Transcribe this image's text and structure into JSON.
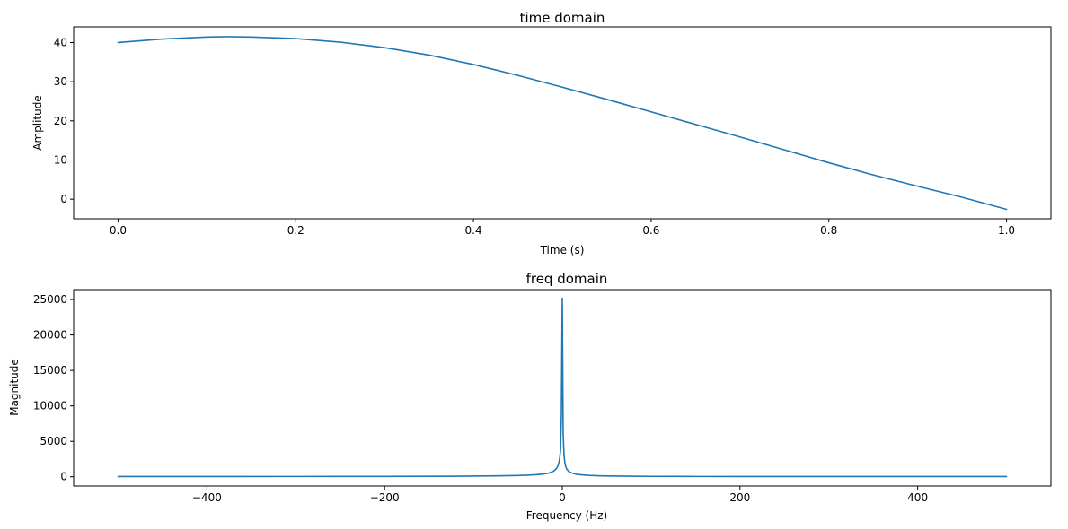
{
  "chart_data": [
    {
      "type": "line",
      "title": "time domain",
      "xlabel": "Time (s)",
      "ylabel": "Amplitude",
      "xlim": [
        -0.05,
        1.05
      ],
      "ylim": [
        -5,
        44
      ],
      "xticks": [
        0.0,
        0.2,
        0.4,
        0.6,
        0.8,
        1.0
      ],
      "xtick_labels": [
        "0.0",
        "0.2",
        "0.4",
        "0.6",
        "0.8",
        "1.0"
      ],
      "yticks": [
        0,
        10,
        20,
        30,
        40
      ],
      "ytick_labels": [
        "0",
        "10",
        "20",
        "30",
        "40"
      ],
      "grid": false,
      "color": "#1f77b4",
      "x": [
        0.0,
        0.05,
        0.1,
        0.12,
        0.15,
        0.2,
        0.25,
        0.3,
        0.35,
        0.4,
        0.45,
        0.5,
        0.55,
        0.6,
        0.65,
        0.7,
        0.75,
        0.8,
        0.85,
        0.9,
        0.95,
        1.0
      ],
      "y": [
        40.0,
        40.9,
        41.4,
        41.5,
        41.4,
        41.0,
        40.1,
        38.7,
        36.8,
        34.4,
        31.6,
        28.6,
        25.5,
        22.3,
        19.1,
        15.9,
        12.6,
        9.3,
        6.2,
        3.3,
        0.5,
        -2.6
      ]
    },
    {
      "type": "line",
      "title": "freq domain",
      "xlabel": "Frequency (Hz)",
      "ylabel": "Magnitude",
      "xlim": [
        -550,
        550
      ],
      "ylim": [
        -1300,
        26400
      ],
      "xticks": [
        -400,
        -200,
        0,
        200,
        400
      ],
      "xtick_labels": [
        "−400",
        "−200",
        "0",
        "200",
        "400"
      ],
      "yticks": [
        0,
        5000,
        10000,
        15000,
        20000,
        25000
      ],
      "ytick_labels": [
        "0",
        "5000",
        "10000",
        "15000",
        "20000",
        "25000"
      ],
      "grid": false,
      "color": "#1f77b4",
      "x": [
        -500,
        -400,
        -300,
        -200,
        -150,
        -100,
        -75,
        -50,
        -40,
        -30,
        -20,
        -15,
        -10,
        -7,
        -5,
        -4,
        -3,
        -2,
        -1,
        0,
        1,
        2,
        3,
        4,
        5,
        7,
        10,
        15,
        20,
        30,
        40,
        50,
        75,
        100,
        150,
        200,
        300,
        400,
        500
      ],
      "y": [
        40,
        40,
        45,
        55,
        65,
        100,
        130,
        180,
        220,
        290,
        410,
        530,
        780,
        1100,
        1500,
        1900,
        2500,
        3700,
        8800,
        25200,
        6000,
        3000,
        1900,
        1400,
        1100,
        800,
        560,
        380,
        290,
        200,
        150,
        120,
        80,
        60,
        45,
        40,
        35,
        30,
        30
      ]
    }
  ]
}
